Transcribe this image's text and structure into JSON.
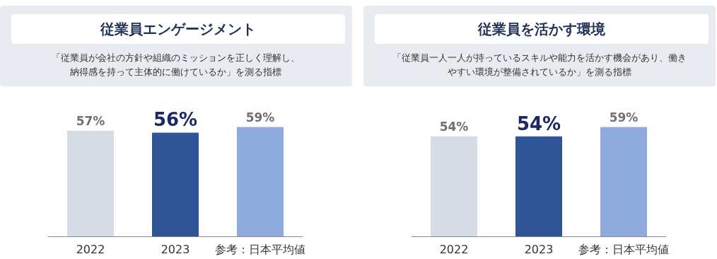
{
  "chart_data": [
    {
      "type": "bar",
      "title": "従業員エンゲージメント",
      "subtitle": "「従業員が会社の方針や組織のミッションを正しく理解し、納得感を持って主体的に働けているか」を測る指標",
      "categories": [
        "2022",
        "2023",
        "参考：日本平均値"
      ],
      "values": [
        57,
        56,
        59
      ],
      "value_labels": [
        "57%",
        "56%",
        "59%"
      ],
      "colors": [
        "#d6dce5",
        "#2f5597",
        "#8faadc"
      ],
      "grid": false,
      "tick_labels": "x"
    },
    {
      "type": "bar",
      "title": "従業員を活かす環境",
      "subtitle": "「従業員一人一人が持っているスキルや能力を活かす機会があり、働きやすい環境が整備されているか」を測る指標",
      "categories": [
        "2022",
        "2023",
        "参考：日本平均値"
      ],
      "values": [
        54,
        54,
        59
      ],
      "value_labels": [
        "54%",
        "54%",
        "59%"
      ],
      "colors": [
        "#d6dce5",
        "#2f5597",
        "#8faadc"
      ],
      "grid": false,
      "tick_labels": "x"
    }
  ]
}
